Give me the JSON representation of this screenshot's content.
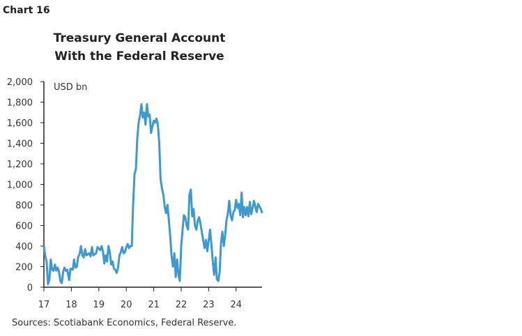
{
  "chart_number": "Chart 16",
  "source": "Sources: Scotiabank Economics, Federal Reserve.",
  "chart_data": {
    "type": "line",
    "title": [
      "Treasury General Account",
      "With the Federal Reserve"
    ],
    "ylabel": "USD bn",
    "xlabel": "",
    "ylim": [
      0,
      2000
    ],
    "xlim": [
      17,
      25
    ],
    "yticks": [
      "0",
      "200",
      "400",
      "600",
      "800",
      "1,000",
      "1,200",
      "1,400",
      "1,600",
      "1,800",
      "2,000"
    ],
    "ytick_values": [
      0,
      200,
      400,
      600,
      800,
      1000,
      1200,
      1400,
      1600,
      1800,
      2000
    ],
    "xticks": [
      "17",
      "18",
      "19",
      "20",
      "21",
      "22",
      "23",
      "24"
    ],
    "xtick_values": [
      17,
      18,
      19,
      20,
      21,
      22,
      23,
      24
    ],
    "grid": false,
    "color": "#3d9ad1",
    "series": [
      {
        "x": [
          17.0,
          17.05,
          17.1,
          17.15,
          17.2,
          17.25,
          17.3,
          17.35,
          17.4,
          17.45,
          17.5,
          17.55,
          17.6,
          17.65,
          17.7,
          17.75,
          17.8,
          17.85,
          17.92,
          17.97,
          18.05,
          18.1,
          18.15,
          18.2,
          18.25,
          18.3,
          18.35,
          18.4,
          18.45,
          18.5,
          18.55,
          18.65,
          18.7,
          18.75,
          18.8,
          18.9,
          18.95,
          19.05,
          19.1,
          19.15,
          19.2,
          19.25,
          19.3,
          19.35,
          19.4,
          19.45,
          19.5,
          19.55,
          19.6,
          19.65,
          19.7,
          19.75,
          19.8,
          19.85,
          19.9,
          19.95,
          20.0,
          20.05,
          20.1,
          20.15,
          20.2,
          20.25,
          20.3,
          20.35,
          20.4,
          20.45,
          20.5,
          20.55,
          20.6,
          20.65,
          20.7,
          20.75,
          20.8,
          20.85,
          20.9,
          20.95,
          21.0,
          21.05,
          21.1,
          21.15,
          21.2,
          21.25,
          21.3,
          21.35,
          21.4,
          21.45,
          21.5,
          21.55,
          21.6,
          21.65,
          21.7,
          21.75,
          21.8,
          21.85,
          21.9,
          21.95,
          22.0,
          22.05,
          22.1,
          22.15,
          22.2,
          22.25,
          22.3,
          22.35,
          22.4,
          22.45,
          22.5,
          22.55,
          22.6,
          22.65,
          22.7,
          22.75,
          22.8,
          22.85,
          22.9,
          22.95,
          23.0,
          23.05,
          23.1,
          23.15,
          23.2,
          23.25,
          23.3,
          23.35,
          23.4,
          23.45,
          23.5,
          23.55,
          23.6,
          23.65,
          23.7,
          23.75,
          23.8,
          23.85,
          23.9,
          23.95,
          24.0,
          24.05,
          24.1,
          24.15,
          24.2,
          24.25,
          24.3,
          24.35,
          24.4,
          24.45,
          24.5,
          24.55,
          24.6,
          24.65,
          24.7,
          24.75,
          24.8,
          24.9,
          24.95
        ],
        "y": [
          400,
          300,
          250,
          30,
          80,
          270,
          170,
          160,
          220,
          160,
          190,
          150,
          60,
          40,
          150,
          190,
          160,
          170,
          70,
          180,
          170,
          270,
          190,
          200,
          300,
          320,
          400,
          310,
          290,
          370,
          310,
          330,
          300,
          390,
          310,
          330,
          390,
          360,
          400,
          350,
          230,
          310,
          250,
          400,
          340,
          220,
          250,
          180,
          170,
          140,
          190,
          310,
          340,
          390,
          330,
          340,
          390,
          420,
          380,
          400,
          400,
          800,
          1100,
          1150,
          1450,
          1600,
          1670,
          1780,
          1650,
          1700,
          1580,
          1780,
          1660,
          1680,
          1500,
          1560,
          1620,
          1600,
          1640,
          1580,
          1400,
          1050,
          960,
          900,
          780,
          720,
          800,
          650,
          500,
          300,
          200,
          330,
          100,
          270,
          120,
          60,
          400,
          560,
          700,
          680,
          600,
          560,
          900,
          950,
          690,
          760,
          600,
          560,
          640,
          680,
          620,
          540,
          460,
          380,
          460,
          350,
          450,
          560,
          420,
          250,
          120,
          290,
          80,
          60,
          150,
          430,
          540,
          400,
          500,
          650,
          720,
          840,
          700,
          650,
          730,
          750,
          850,
          770,
          810,
          700,
          920,
          680,
          780,
          700,
          780,
          690,
          830,
          710,
          770,
          840,
          780,
          730,
          810,
          760,
          720
        ]
      }
    ]
  }
}
